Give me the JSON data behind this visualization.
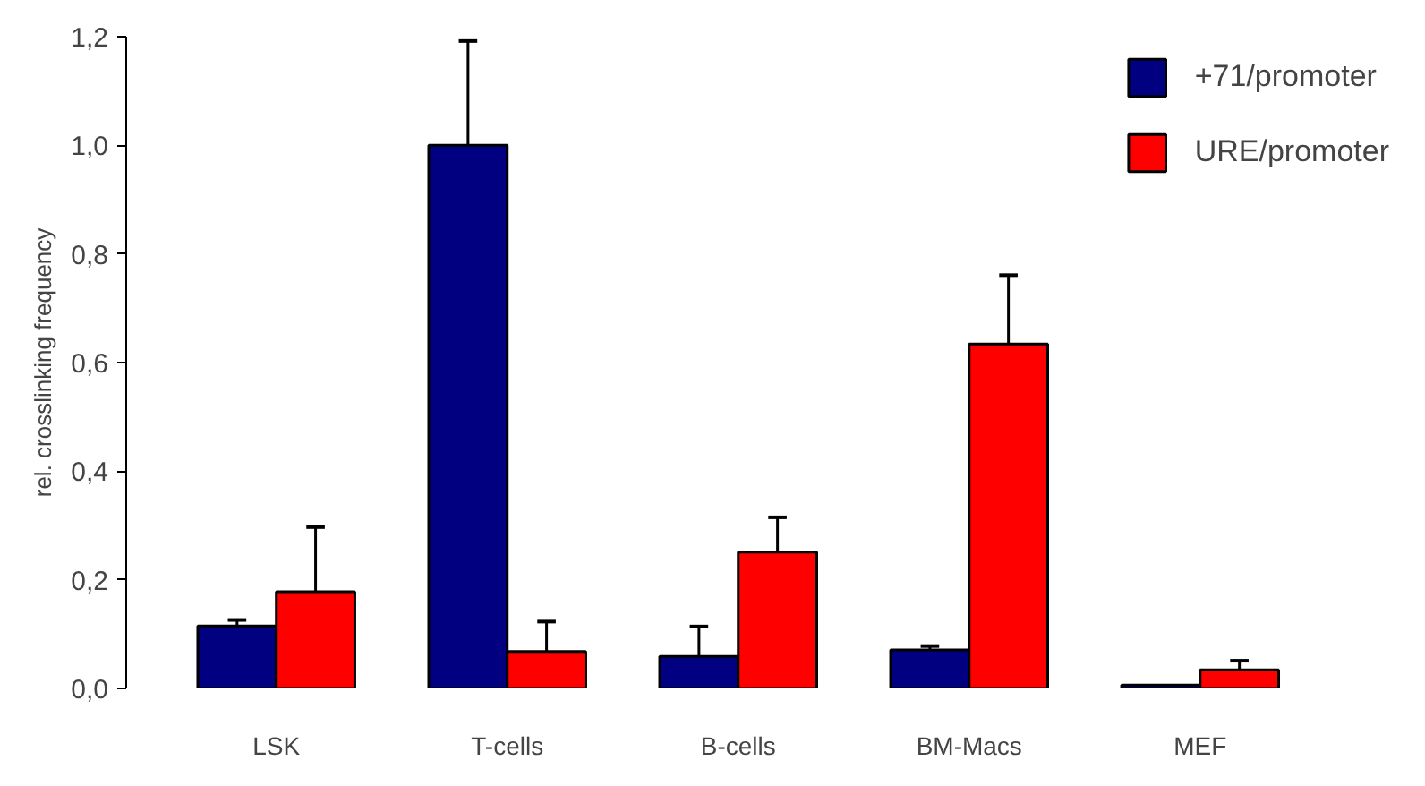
{
  "chart_data": {
    "type": "bar",
    "ylabel": "rel. crosslinking frequency",
    "categories": [
      "LSK",
      "T-cells",
      "B-cells",
      "BM-Macs",
      "MEF"
    ],
    "series": [
      {
        "name": "+71/promoter",
        "color": "#000080",
        "values": [
          0.115,
          1.0,
          0.059,
          0.071,
          0.006
        ],
        "errors": [
          [
            0.115,
            0.126
          ],
          [
            1.0,
            1.192
          ],
          [
            0.059,
            0.114
          ],
          [
            0.071,
            0.078
          ],
          null
        ]
      },
      {
        "name": "URE/promoter",
        "color": "#ff0000",
        "values": [
          0.178,
          0.068,
          0.251,
          0.634,
          0.034
        ],
        "errors": [
          [
            0.178,
            0.297
          ],
          [
            0.068,
            0.123
          ],
          [
            0.251,
            0.315
          ],
          [
            0.634,
            0.761
          ],
          [
            0.034,
            0.051
          ]
        ]
      }
    ],
    "ylim": [
      0,
      1.2
    ],
    "yticks": [
      {
        "value": 0,
        "label": "0,0"
      },
      {
        "value": 0.2,
        "label": "0,2"
      },
      {
        "value": 0.4,
        "label": "0,4"
      },
      {
        "value": 0.6,
        "label": "0,6"
      },
      {
        "value": 0.8,
        "label": "0,8"
      },
      {
        "value": 1.0,
        "label": "1,0"
      },
      {
        "value": 1.2,
        "label": "1,2"
      }
    ],
    "grid": false,
    "legend": "top right"
  }
}
